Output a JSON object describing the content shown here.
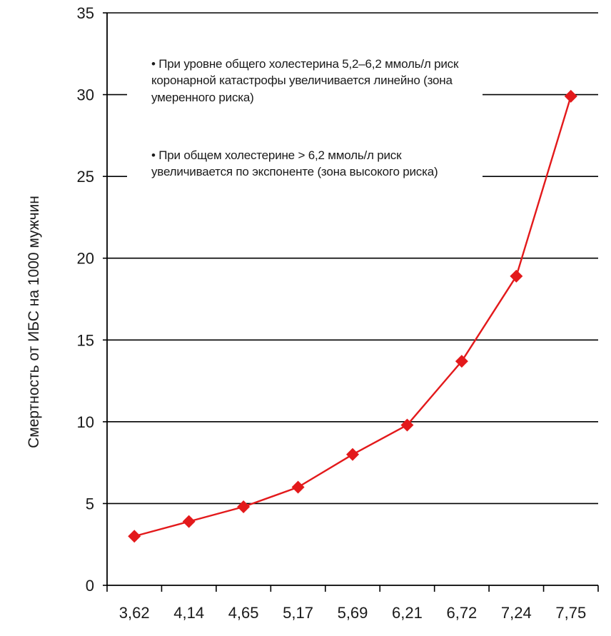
{
  "chart_data": {
    "type": "line",
    "ylabel": "Смертность от ИБС на 1000 мужчин",
    "xlabel": "",
    "categories": [
      "3,62",
      "4,14",
      "4,65",
      "5,17",
      "5,69",
      "6,21",
      "6,72",
      "7,24",
      "7,75"
    ],
    "series": [
      {
        "values": [
          3.0,
          3.9,
          4.8,
          6.0,
          8.0,
          9.8,
          13.7,
          18.9,
          29.9
        ],
        "color": "#e3191b",
        "marker": "diamond"
      }
    ],
    "ylim": [
      0,
      35
    ],
    "yticks": [
      0,
      5,
      10,
      15,
      20,
      25,
      30,
      35
    ],
    "grid": true,
    "annotations": [
      "• При уровне общего холестерина 5,2–6,2 ммоль/л риск коронарной катастрофы увеличивается линейно (зона умеренного риска)",
      "• При общем холестерине > 6,2 ммоль/л риск увеличивается по экспоненте (зона высокого риска)"
    ]
  }
}
